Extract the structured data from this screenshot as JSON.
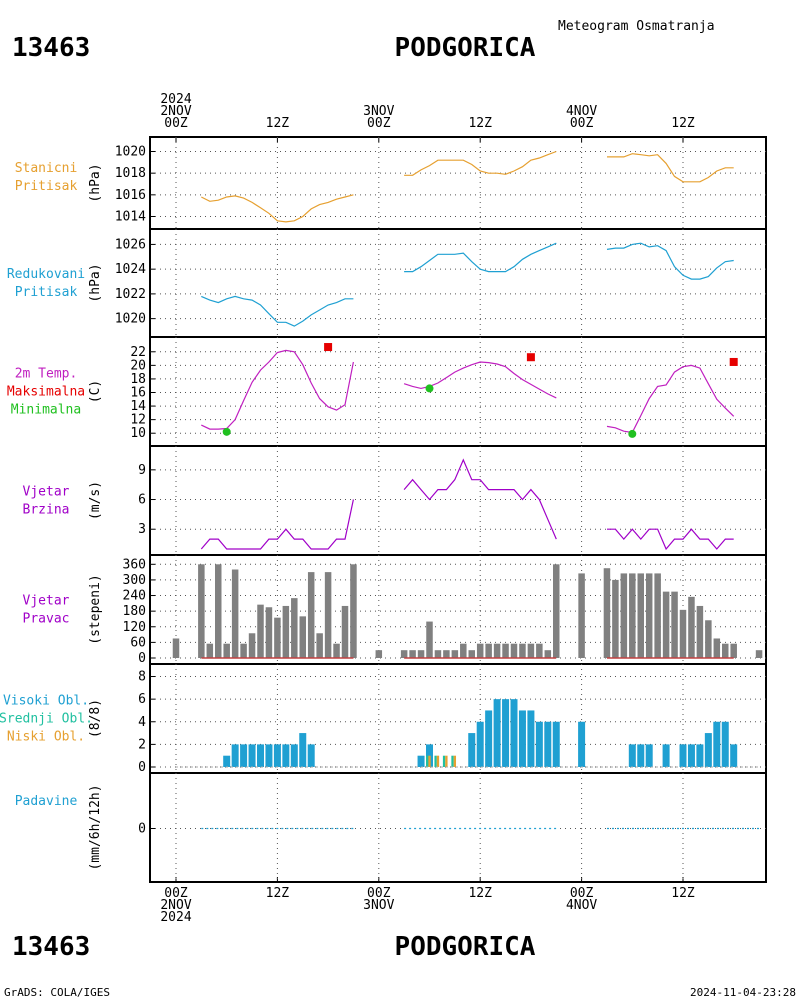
{
  "header": {
    "station_id": "13463",
    "station_name": "PODGORICA",
    "subtitle": "Meteogram Osmatranja",
    "year": "2024"
  },
  "footer": {
    "station_id": "13463",
    "station_name": "PODGORICA",
    "credit": "GrADS: COLA/IGES",
    "timestamp": "2024-11-04-23:28"
  },
  "time_axis": {
    "top_labels": [
      {
        "t": 0,
        "lines": [
          "2024",
          "2NOV",
          "00Z"
        ]
      },
      {
        "t": 12,
        "lines": [
          "12Z"
        ]
      },
      {
        "t": 24,
        "lines": [
          "3NOV",
          "00Z"
        ]
      },
      {
        "t": 36,
        "lines": [
          "12Z"
        ]
      },
      {
        "t": 48,
        "lines": [
          "4NOV",
          "00Z"
        ]
      },
      {
        "t": 60,
        "lines": [
          "12Z"
        ]
      }
    ],
    "bottom_labels": [
      {
        "t": 0,
        "lines": [
          "00Z",
          "2NOV",
          "2024"
        ]
      },
      {
        "t": 12,
        "lines": [
          "12Z"
        ]
      },
      {
        "t": 24,
        "lines": [
          "00Z",
          "3NOV"
        ]
      },
      {
        "t": 36,
        "lines": [
          "12Z"
        ]
      },
      {
        "t": 48,
        "lines": [
          "00Z",
          "4NOV"
        ]
      },
      {
        "t": 60,
        "lines": [
          "12Z"
        ]
      }
    ],
    "t_min": -3,
    "t_max": 70
  },
  "colors": {
    "station_pressure": "#e6a030",
    "reduced_pressure": "#1fa0d2",
    "temperature": "#c020c0",
    "maximum": "#e60000",
    "minimum": "#20c020",
    "wind": "#a000c8",
    "wind_dir_bar": "#808080",
    "wind_dir_base": "#c04040",
    "cloud_high": "#1fa0d2",
    "cloud_mid": "#20c0a0",
    "cloud_low": "#e6a030",
    "precip": "#1fa0d2",
    "label_station": "#e6a030",
    "label_reduced": "#1fa0d2",
    "label_temp": "#c020c0",
    "label_max": "#e60000",
    "label_min": "#20c020",
    "label_wind": "#a000c8",
    "label_cloud_high": "#1fa0d2",
    "label_cloud_mid": "#20c0a0",
    "label_cloud_low": "#e6a030",
    "label_precip": "#1fa0d2"
  },
  "chart_data": [
    {
      "type": "line",
      "id": "station_pressure",
      "label_lines": [
        "Stanicni",
        "Pritisak"
      ],
      "unit": "(hPa)",
      "yticks": [
        1014,
        1016,
        1018,
        1020
      ],
      "ylim": [
        1013.4,
        1020.6
      ],
      "segments": [
        {
          "x": [
            3,
            4,
            5,
            6,
            7,
            8,
            9,
            10,
            11,
            12,
            13,
            14,
            15,
            16,
            17,
            18,
            19,
            20,
            21
          ],
          "y": [
            1015.8,
            1015.4,
            1015.5,
            1015.8,
            1015.9,
            1015.7,
            1015.3,
            1014.8,
            1014.3,
            1013.6,
            1013.5,
            1013.6,
            1014.0,
            1014.7,
            1015.1,
            1015.3,
            1015.6,
            1015.8,
            1016.0
          ]
        },
        {
          "x": [
            27,
            28,
            29,
            30,
            31,
            32,
            33,
            34,
            35,
            36,
            37,
            38,
            39,
            40,
            41,
            42,
            43,
            44,
            45
          ],
          "y": [
            1017.8,
            1017.8,
            1018.3,
            1018.7,
            1019.2,
            1019.2,
            1019.2,
            1019.2,
            1018.8,
            1018.2,
            1018.0,
            1018.0,
            1017.9,
            1018.2,
            1018.6,
            1019.2,
            1019.4,
            1019.7,
            1020.0
          ]
        },
        {
          "x": [
            51,
            52,
            53,
            54,
            55,
            56,
            57,
            58,
            59,
            60,
            61,
            62,
            63,
            64,
            65,
            66
          ],
          "y": [
            1019.5,
            1019.5,
            1019.5,
            1019.8,
            1019.7,
            1019.6,
            1019.7,
            1018.9,
            1017.7,
            1017.2,
            1017.2,
            1017.2,
            1017.6,
            1018.2,
            1018.5,
            1018.5
          ]
        }
      ]
    },
    {
      "type": "line",
      "id": "reduced_pressure",
      "label_lines": [
        "Redukovani",
        "Pritisak"
      ],
      "unit": "(hPa)",
      "yticks": [
        1020,
        1022,
        1024,
        1026
      ],
      "ylim": [
        1019.0,
        1026.6
      ],
      "segments": [
        {
          "x": [
            3,
            4,
            5,
            6,
            7,
            8,
            9,
            10,
            11,
            12,
            13,
            14,
            15,
            16,
            17,
            18,
            19,
            20,
            21
          ],
          "y": [
            1021.8,
            1021.5,
            1021.3,
            1021.6,
            1021.8,
            1021.6,
            1021.5,
            1021.1,
            1020.4,
            1019.7,
            1019.7,
            1019.4,
            1019.8,
            1020.3,
            1020.7,
            1021.1,
            1021.3,
            1021.6,
            1021.6
          ]
        },
        {
          "x": [
            27,
            28,
            29,
            30,
            31,
            32,
            33,
            34,
            35,
            36,
            37,
            38,
            39,
            40,
            41,
            42,
            43,
            44,
            45
          ],
          "y": [
            1023.8,
            1023.8,
            1024.2,
            1024.7,
            1025.2,
            1025.2,
            1025.2,
            1025.3,
            1024.6,
            1024.0,
            1023.8,
            1023.8,
            1023.8,
            1024.2,
            1024.8,
            1025.2,
            1025.5,
            1025.8,
            1026.1
          ]
        },
        {
          "x": [
            51,
            52,
            53,
            54,
            55,
            56,
            57,
            58,
            59,
            60,
            61,
            62,
            63,
            64,
            65,
            66
          ],
          "y": [
            1025.6,
            1025.7,
            1025.7,
            1026.0,
            1026.1,
            1025.8,
            1025.9,
            1025.5,
            1024.2,
            1023.5,
            1023.2,
            1023.2,
            1023.4,
            1024.1,
            1024.6,
            1024.7
          ]
        }
      ]
    },
    {
      "type": "line",
      "id": "temperature",
      "label_lines": [
        "2m Temp.",
        "Maksimalna",
        "Minimalna"
      ],
      "unit": "(C)",
      "yticks": [
        10,
        12,
        14,
        16,
        18,
        20,
        22
      ],
      "ylim": [
        9.0,
        23.0
      ],
      "segments": [
        {
          "x": [
            3,
            4,
            5,
            6,
            7,
            8,
            9,
            10,
            11,
            12,
            13,
            14,
            15,
            16,
            17,
            18,
            19,
            20,
            21
          ],
          "y": [
            11.2,
            10.6,
            10.6,
            10.7,
            12.0,
            14.8,
            17.5,
            19.3,
            20.5,
            21.9,
            22.2,
            22.0,
            20.1,
            17.4,
            15.1,
            13.9,
            13.4,
            14.2,
            20.5
          ]
        },
        {
          "x": [
            27,
            28,
            29,
            30,
            31,
            32,
            33,
            34,
            35,
            36,
            37,
            38,
            39,
            40,
            41,
            42,
            43,
            44,
            45
          ],
          "y": [
            17.3,
            16.9,
            16.6,
            16.9,
            17.4,
            18.2,
            19.0,
            19.6,
            20.1,
            20.5,
            20.4,
            20.2,
            19.8,
            18.8,
            17.9,
            17.2,
            16.5,
            15.8,
            15.2
          ]
        },
        {
          "x": [
            51,
            52,
            53,
            54,
            55,
            56,
            57,
            58,
            59,
            60,
            61,
            62,
            63,
            64,
            65,
            66
          ],
          "y": [
            11.0,
            10.8,
            10.3,
            10.1,
            12.6,
            15.1,
            16.9,
            17.1,
            19.0,
            19.8,
            20.0,
            19.6,
            17.3,
            15.0,
            13.7,
            12.5
          ]
        }
      ],
      "maxima": [
        {
          "t": 18,
          "v": 22.7
        },
        {
          "t": 42,
          "v": 21.2
        },
        {
          "t": 66,
          "v": 20.5
        }
      ],
      "minima": [
        {
          "t": 6,
          "v": 10.2
        },
        {
          "t": 30,
          "v": 16.6
        },
        {
          "t": 54,
          "v": 9.9
        }
      ]
    },
    {
      "type": "line",
      "id": "wind_speed",
      "label_lines": [
        "Vjetar",
        "Brzina"
      ],
      "unit": "(m/s)",
      "yticks": [
        3,
        6,
        9
      ],
      "ylim": [
        1.0,
        10.6
      ],
      "segments": [
        {
          "x": [
            3,
            4,
            5,
            6,
            7,
            8,
            9,
            10,
            11,
            12,
            13,
            14,
            15,
            16,
            17,
            18,
            19,
            20,
            21
          ],
          "y": [
            1.0,
            2.0,
            2.0,
            1.0,
            1.0,
            1.0,
            1.0,
            1.0,
            2.0,
            2.0,
            3.0,
            2.0,
            2.0,
            1.0,
            1.0,
            1.0,
            2.0,
            2.0,
            6.0
          ]
        },
        {
          "x": [
            27,
            28,
            29,
            30,
            31,
            32,
            33,
            34,
            35,
            36,
            37,
            38,
            39,
            40,
            41,
            42,
            43,
            44,
            45
          ],
          "y": [
            7.0,
            8.0,
            7.0,
            6.0,
            7.0,
            7.0,
            8.0,
            10.0,
            8.0,
            8.0,
            7.0,
            7.0,
            7.0,
            7.0,
            6.0,
            7.0,
            6.0,
            4.0,
            2.0
          ]
        },
        {
          "x": [
            51,
            52,
            53,
            54,
            55,
            56,
            57,
            58,
            59,
            60,
            61,
            62,
            63,
            64,
            65,
            66
          ],
          "y": [
            3.0,
            3.0,
            2.0,
            3.0,
            2.0,
            3.0,
            3.0,
            1.0,
            2.0,
            2.0,
            3.0,
            2.0,
            2.0,
            1.0,
            2.0,
            2.0
          ]
        }
      ]
    },
    {
      "type": "bar",
      "id": "wind_direction",
      "label_lines": [
        "Vjetar",
        "Pravac"
      ],
      "unit": "(stepeni)",
      "yticks": [
        0,
        60,
        120,
        180,
        240,
        300,
        360
      ],
      "ylim": [
        0,
        365
      ],
      "x": [
        0,
        3,
        4,
        5,
        6,
        7,
        8,
        9,
        10,
        11,
        12,
        13,
        14,
        15,
        16,
        17,
        18,
        19,
        20,
        21,
        24,
        27,
        28,
        29,
        30,
        31,
        32,
        33,
        34,
        35,
        36,
        37,
        38,
        39,
        40,
        41,
        42,
        43,
        44,
        45,
        48,
        51,
        52,
        53,
        54,
        55,
        56,
        57,
        58,
        59,
        60,
        61,
        62,
        63,
        64,
        65,
        66,
        69
      ],
      "values": [
        75,
        360,
        55,
        360,
        55,
        340,
        55,
        95,
        205,
        195,
        155,
        200,
        230,
        160,
        330,
        95,
        330,
        55,
        200,
        360,
        30,
        30,
        30,
        30,
        140,
        30,
        30,
        30,
        55,
        30,
        55,
        55,
        55,
        55,
        55,
        55,
        55,
        55,
        30,
        360,
        325,
        345,
        300,
        325,
        325,
        325,
        325,
        325,
        255,
        255,
        185,
        235,
        200,
        145,
        75,
        55,
        55,
        30
      ]
    },
    {
      "type": "bar",
      "id": "clouds",
      "label_lines": [
        "Visoki Obl.",
        "Srednji Obl.",
        "Niski Obl."
      ],
      "unit": "(8/8)",
      "yticks": [
        0,
        2,
        4,
        6,
        8
      ],
      "ylim": [
        0,
        8.4
      ],
      "high_x": [
        6,
        7,
        8,
        9,
        10,
        11,
        12,
        13,
        14,
        15,
        16,
        29,
        30,
        35,
        36,
        37,
        38,
        39,
        40,
        41,
        42,
        43,
        44,
        45,
        48,
        54,
        55,
        56,
        58,
        60,
        61,
        62,
        63,
        64,
        65,
        66
      ],
      "high_values": [
        1,
        2,
        2,
        2,
        2,
        2,
        2,
        2,
        2,
        3,
        2,
        1,
        2,
        3,
        4,
        5,
        6,
        6,
        6,
        5,
        5,
        4,
        4,
        4,
        4,
        2,
        2,
        2,
        2,
        2,
        2,
        2,
        3,
        4,
        4,
        2
      ],
      "mid_low_x": [
        30,
        31,
        32,
        33
      ],
      "mid_values": [
        1,
        1,
        1,
        1
      ],
      "low_values": [
        1,
        1,
        1,
        1
      ]
    },
    {
      "type": "line",
      "id": "precipitation",
      "label_lines": [
        "Padavine"
      ],
      "unit": "(mm/6h/12h)",
      "yticks": [
        0
      ],
      "ylim": [
        -0.5,
        0.5
      ],
      "segments": [
        {
          "x": [
            3,
            21
          ],
          "y": [
            0,
            0
          ]
        },
        {
          "x": [
            27,
            45
          ],
          "y": [
            0,
            0
          ]
        },
        {
          "x": [
            51,
            69
          ],
          "y": [
            0,
            0
          ]
        }
      ]
    }
  ]
}
